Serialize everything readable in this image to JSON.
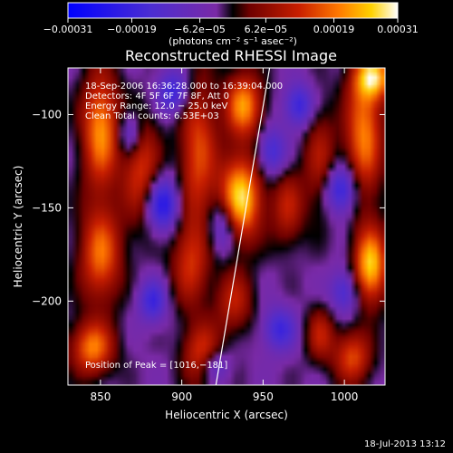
{
  "chart_data": {
    "type": "heatmap",
    "title": "Reconstructed RHESSI Image",
    "xlabel": "Heliocentric X (arcsec)",
    "ylabel": "Heliocentric Y (arcsec)",
    "xlim": [
      830,
      1025
    ],
    "ylim": [
      -245,
      -75
    ],
    "x_ticks": [
      850,
      900,
      950,
      1000
    ],
    "x_tick_labels": [
      "850",
      "900",
      "950",
      "1000"
    ],
    "y_ticks": [
      -100,
      -150,
      -200
    ],
    "y_tick_labels": [
      "−100",
      "−150",
      "−200"
    ],
    "colorbar": {
      "range": [
        -0.00031,
        0.00031
      ],
      "ticks": [
        -0.00031,
        -0.00019,
        -6.2e-05,
        6.2e-05,
        0.00019,
        0.00031
      ],
      "tick_labels": [
        "−0.00031",
        "−0.00019",
        "−6.2e−05",
        "6.2e−05",
        "0.00019",
        "0.00031"
      ],
      "unit_label": "(photons cm⁻² s⁻¹ asec⁻²)"
    },
    "annotations": [
      "18-Sep-2006 16:36:28.000 to 16:39:04.000",
      "Detectors: 4F 5F 6F 7F 8F, Att 0",
      "Energy Range: 12.0 − 25.0 keV",
      "Clean    Total counts: 6.53E+03"
    ],
    "peak_label": "Position of Peak = [1016,−181]",
    "limb_line": [
      [
        921,
        -245
      ],
      [
        954,
        -75
      ]
    ],
    "grid": false,
    "legend": "none",
    "source_blobs": [
      {
        "x": 850,
        "y": -108,
        "sx": 8,
        "sy": 22,
        "a": 0.8
      },
      {
        "x": 850,
        "y": -175,
        "sx": 9,
        "sy": 18,
        "a": 0.7
      },
      {
        "x": 845,
        "y": -225,
        "sx": 9,
        "sy": 10,
        "a": 0.75
      },
      {
        "x": 875,
        "y": -130,
        "sx": 8,
        "sy": 20,
        "a": 0.55
      },
      {
        "x": 910,
        "y": -120,
        "sx": 8,
        "sy": 28,
        "a": 0.6
      },
      {
        "x": 905,
        "y": -180,
        "sx": 8,
        "sy": 16,
        "a": 0.5
      },
      {
        "x": 912,
        "y": -228,
        "sx": 8,
        "sy": 12,
        "a": 0.55
      },
      {
        "x": 938,
        "y": -95,
        "sx": 8,
        "sy": 12,
        "a": 0.8
      },
      {
        "x": 936,
        "y": -145,
        "sx": 9,
        "sy": 16,
        "a": 1.0
      },
      {
        "x": 932,
        "y": -200,
        "sx": 8,
        "sy": 12,
        "a": 0.45
      },
      {
        "x": 965,
        "y": -150,
        "sx": 7,
        "sy": 14,
        "a": 0.45
      },
      {
        "x": 985,
        "y": -125,
        "sx": 7,
        "sy": 20,
        "a": 0.4
      },
      {
        "x": 1012,
        "y": -110,
        "sx": 8,
        "sy": 25,
        "a": 0.75
      },
      {
        "x": 1016,
        "y": -181,
        "sx": 7,
        "sy": 14,
        "a": 0.95
      },
      {
        "x": 1005,
        "y": -230,
        "sx": 8,
        "sy": 10,
        "a": 0.6
      },
      {
        "x": 1018,
        "y": -80,
        "sx": 8,
        "sy": 8,
        "a": 0.8
      },
      {
        "x": 985,
        "y": -218,
        "sx": 6,
        "sy": 10,
        "a": 0.45
      }
    ],
    "negative_blobs": [
      {
        "x": 895,
        "y": -88,
        "sx": 7,
        "sy": 8,
        "a": 0.55
      },
      {
        "x": 888,
        "y": -148,
        "sx": 7,
        "sy": 10,
        "a": 0.7
      },
      {
        "x": 882,
        "y": -200,
        "sx": 6,
        "sy": 8,
        "a": 0.5
      },
      {
        "x": 925,
        "y": -160,
        "sx": 6,
        "sy": 10,
        "a": 0.5
      },
      {
        "x": 955,
        "y": -120,
        "sx": 6,
        "sy": 9,
        "a": 0.5
      },
      {
        "x": 972,
        "y": -95,
        "sx": 6,
        "sy": 8,
        "a": 0.55
      },
      {
        "x": 998,
        "y": -140,
        "sx": 7,
        "sy": 9,
        "a": 0.65
      },
      {
        "x": 960,
        "y": -215,
        "sx": 7,
        "sy": 8,
        "a": 0.5
      },
      {
        "x": 1000,
        "y": -195,
        "sx": 6,
        "sy": 8,
        "a": 0.45
      },
      {
        "x": 868,
        "y": -110,
        "sx": 5,
        "sy": 8,
        "a": 0.45
      },
      {
        "x": 920,
        "y": -235,
        "sx": 6,
        "sy": 6,
        "a": 0.4
      }
    ]
  },
  "footer": {
    "timestamp": "18-Jul-2013 13:12"
  }
}
